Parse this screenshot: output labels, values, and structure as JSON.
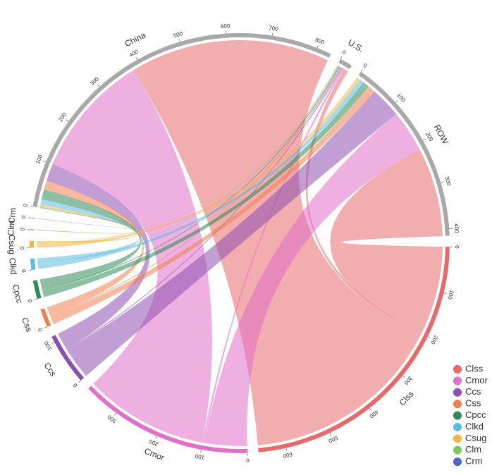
{
  "chart_data": {
    "type": "chord",
    "source_color": "#a9a9a9",
    "sources": [
      {
        "name": "China",
        "ticks": [
          0,
          100,
          200,
          300,
          400,
          500,
          600,
          700,
          800
        ],
        "values": [
          450,
          280,
          40,
          20,
          22,
          12,
          5,
          2,
          1
        ]
      },
      {
        "name": "U.S.",
        "ticks": [
          0
        ],
        "values": [
          10,
          5,
          3,
          3,
          3,
          2,
          2,
          0,
          0
        ]
      },
      {
        "name": "ROW",
        "ticks": [
          0,
          100,
          200,
          300,
          400
        ],
        "values": [
          200,
          95,
          70,
          17,
          15,
          10,
          8,
          0,
          0
        ]
      }
    ],
    "targets": [
      {
        "name": "Clss",
        "color": "#e8696b",
        "ticks": [
          0,
          100,
          200,
          300,
          400,
          500,
          600
        ]
      },
      {
        "name": "Cmor",
        "color": "#e070c8",
        "ticks": [
          0,
          100,
          200,
          300
        ]
      },
      {
        "name": "Ccs",
        "color": "#8e4fb0",
        "ticks": [
          0,
          100
        ]
      },
      {
        "name": "Css",
        "color": "#f0804f",
        "ticks": [
          0
        ]
      },
      {
        "name": "Cpcc",
        "color": "#2e8b57",
        "ticks": [
          0
        ]
      },
      {
        "name": "Clkd",
        "color": "#5bbcdc",
        "ticks": [
          0
        ]
      },
      {
        "name": "Csug",
        "color": "#f3b544",
        "ticks": [
          0
        ]
      },
      {
        "name": "Clm",
        "color": "#7cc85a",
        "ticks": [
          0
        ]
      },
      {
        "name": "Crm",
        "color": "#4a66cc",
        "ticks": [
          0
        ]
      }
    ]
  }
}
